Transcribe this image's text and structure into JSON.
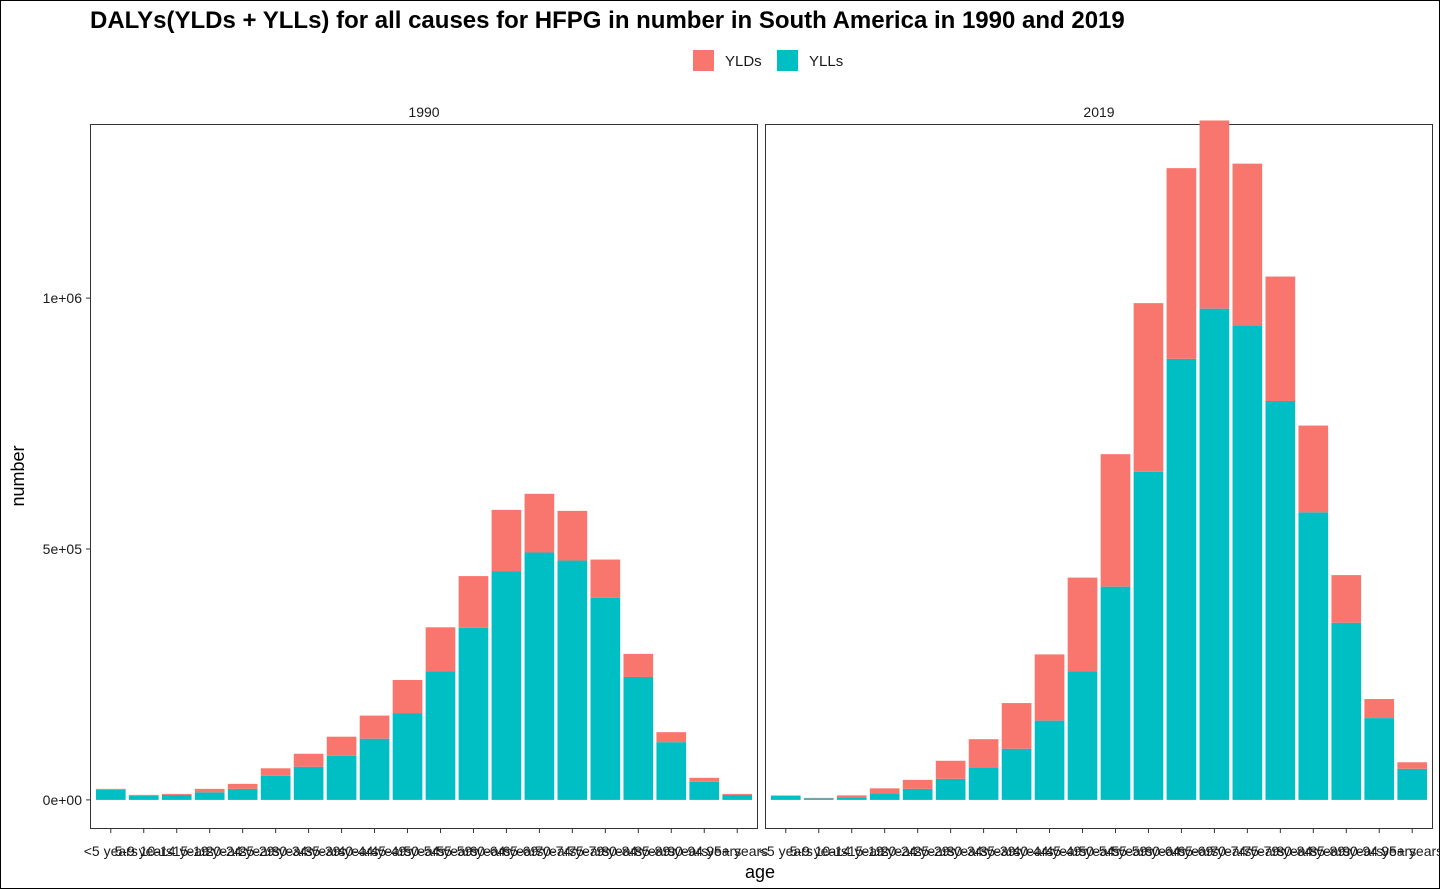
{
  "chart_data": {
    "type": "bar",
    "stacked": true,
    "title": "DALYs(YLDs + YLLs) for all causes for HFPG in number in South America in 1990 and 2019",
    "xlabel": "age",
    "ylabel": "number",
    "ylim": [
      -56000,
      1345000
    ],
    "yticks": [
      0,
      500000,
      1000000
    ],
    "ytick_labels": [
      "0e+00",
      "5e+05",
      "1e+06"
    ],
    "legend": {
      "position": "top",
      "entries": [
        {
          "name": "YLDs",
          "color": "#F8766D"
        },
        {
          "name": "YLLs",
          "color": "#00BFC4"
        }
      ]
    },
    "categories": [
      "<5 years",
      "5-9 years",
      "10-14 years",
      "15-19 years",
      "20-24 years",
      "25-29 years",
      "30-34 years",
      "35-39 years",
      "40-44 years",
      "45-49 years",
      "50-54 years",
      "55-59 years",
      "60-64 years",
      "65-69 years",
      "70-74 years",
      "75-79 years",
      "80-84 years",
      "85-89 years",
      "90-94 years",
      "95+ years"
    ],
    "panels": [
      {
        "facet": "1990",
        "series": [
          {
            "name": "YLLs",
            "values": [
              20000,
              8000,
              10000,
              15000,
              22000,
              48000,
              66000,
              88000,
              122000,
              173000,
              256000,
              343000,
              456000,
              493000,
              477000,
              403000,
              245000,
              115000,
              36000,
              10000
            ]
          },
          {
            "name": "YLDs",
            "values": [
              2000,
              2000,
              2000,
              7000,
              10000,
              15000,
              26000,
              38000,
              46000,
              66000,
              88000,
              103000,
              122000,
              117000,
              99000,
              76000,
              46000,
              20000,
              8000,
              2000
            ]
          }
        ]
      },
      {
        "facet": "2019",
        "series": [
          {
            "name": "YLLs",
            "values": [
              8000,
              3000,
              5000,
              13000,
              22000,
              42000,
              65000,
              102000,
              158000,
              256000,
              425000,
              654000,
              879000,
              979000,
              946000,
              795000,
              573000,
              353000,
              163000,
              62000
            ]
          },
          {
            "name": "YLDs",
            "values": [
              1000,
              1000,
              4000,
              10000,
              18000,
              36000,
              56000,
              91000,
              132000,
              187000,
              264000,
              336000,
              380000,
              375000,
              322000,
              248000,
              173000,
              95000,
              38000,
              13000
            ]
          }
        ]
      }
    ]
  }
}
